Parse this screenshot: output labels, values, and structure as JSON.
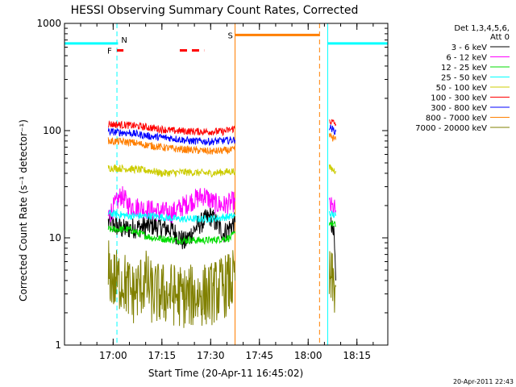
{
  "chart_data": {
    "type": "line",
    "title": "HESSI Observing Summary Count Rates, Corrected",
    "xlabel": "Start Time (20-Apr-11 16:45:02)",
    "ylabel": "Corrected Count Rate (s⁻¹ detector⁻¹)",
    "timestamp": "20-Apr-2011 22:43",
    "y_scale": "log",
    "ylim": [
      1,
      1000
    ],
    "xlim": [
      "16:45:02",
      "18:24:30"
    ],
    "x_ticks": [
      "17:00",
      "17:15",
      "17:30",
      "17:45",
      "18:00",
      "18:15"
    ],
    "y_ticks": [
      "1",
      "10",
      "100",
      "1000"
    ],
    "legend_title": [
      "Det 1,3,4,5,6,",
      "Att 0"
    ],
    "legend_position": "right",
    "series": [
      {
        "name": "3 - 6 keV",
        "color": "#000000",
        "segments": [
          [
            [
              "16:58:30",
              14
            ],
            [
              "17:03:00",
              12
            ],
            [
              "17:12:00",
              13
            ],
            [
              "17:18:00",
              12
            ],
            [
              "17:22:00",
              9
            ],
            [
              "17:26:00",
              13
            ],
            [
              "17:30:00",
              16
            ],
            [
              "17:34:00",
              11
            ],
            [
              "17:37:30",
              14
            ]
          ],
          [
            [
              "18:07:00",
              14
            ],
            [
              "18:08:00",
              10
            ],
            [
              "18:08:30",
              4
            ]
          ]
        ]
      },
      {
        "name": "6 - 12 keV",
        "color": "#ff00ff",
        "segments": [
          [
            [
              "16:58:30",
              16
            ],
            [
              "17:02:30",
              25
            ],
            [
              "17:05:00",
              20
            ],
            [
              "17:12:00",
              18
            ],
            [
              "17:18:00",
              17
            ],
            [
              "17:24:00",
              22
            ],
            [
              "17:28:00",
              25
            ],
            [
              "17:31:00",
              21
            ],
            [
              "17:34:00",
              20
            ],
            [
              "17:37:30",
              22
            ]
          ],
          [
            [
              "18:06:30",
              20
            ],
            [
              "18:08:30",
              18
            ]
          ]
        ]
      },
      {
        "name": "12 - 25 keV",
        "color": "#00dd00",
        "segments": [
          [
            [
              "16:58:30",
              12
            ],
            [
              "17:05:00",
              12
            ],
            [
              "17:08:00",
              11
            ],
            [
              "17:12:00",
              10
            ],
            [
              "17:20:00",
              9.5
            ],
            [
              "17:30:00",
              9.5
            ],
            [
              "17:36:00",
              10
            ],
            [
              "17:37:30",
              11
            ]
          ],
          [
            [
              "18:06:30",
              14
            ],
            [
              "18:08:30",
              13
            ]
          ]
        ]
      },
      {
        "name": "25 - 50 keV",
        "color": "#00ffff",
        "segments": [
          [
            [
              "16:58:30",
              17
            ],
            [
              "17:05:00",
              16
            ],
            [
              "17:12:00",
              16
            ],
            [
              "17:20:00",
              15
            ],
            [
              "17:30:00",
              15
            ],
            [
              "17:37:30",
              16
            ]
          ],
          [
            [
              "18:06:30",
              17
            ],
            [
              "18:08:30",
              16
            ]
          ]
        ]
      },
      {
        "name": "50 - 100 keV",
        "color": "#cccc00",
        "segments": [
          [
            [
              "16:58:30",
              45
            ],
            [
              "17:05:00",
              44
            ],
            [
              "17:12:00",
              42
            ],
            [
              "17:15:00",
              40
            ],
            [
              "17:22:00",
              41
            ],
            [
              "17:30:00",
              40
            ],
            [
              "17:37:30",
              42
            ]
          ],
          [
            [
              "18:06:30",
              45
            ],
            [
              "18:08:30",
              42
            ]
          ]
        ]
      },
      {
        "name": "100 - 300 keV",
        "color": "#ff0000",
        "segments": [
          [
            [
              "16:58:30",
              115
            ],
            [
              "17:05:00",
              112
            ],
            [
              "17:10:00",
              108
            ],
            [
              "17:18:00",
              100
            ],
            [
              "17:26:00",
              98
            ],
            [
              "17:34:00",
              98
            ],
            [
              "17:37:30",
              105
            ]
          ],
          [
            [
              "18:06:30",
              125
            ],
            [
              "18:08:30",
              115
            ]
          ]
        ]
      },
      {
        "name": "300 - 800 keV",
        "color": "#0000ff",
        "segments": [
          [
            [
              "16:58:30",
              98
            ],
            [
              "17:05:00",
              95
            ],
            [
              "17:12:00",
              88
            ],
            [
              "17:18:00",
              85
            ],
            [
              "17:24:00",
              80
            ],
            [
              "17:30:00",
              79
            ],
            [
              "17:37:30",
              82
            ]
          ],
          [
            [
              "18:06:30",
              108
            ],
            [
              "18:08:30",
              98
            ]
          ]
        ]
      },
      {
        "name": "800 - 7000 keV",
        "color": "#ff7f00",
        "segments": [
          [
            [
              "16:58:30",
              80
            ],
            [
              "17:05:00",
              78
            ],
            [
              "17:12:00",
              72
            ],
            [
              "17:18:00",
              68
            ],
            [
              "17:24:00",
              66
            ],
            [
              "17:30:00",
              64
            ],
            [
              "17:37:30",
              66
            ]
          ],
          [
            [
              "18:06:30",
              90
            ],
            [
              "18:08:30",
              82
            ]
          ]
        ]
      },
      {
        "name": "7000 - 20000 keV",
        "color": "#808000",
        "segments": [
          [
            [
              "16:58:30",
              5
            ],
            [
              "17:00:00",
              4
            ],
            [
              "17:03:00",
              4
            ],
            [
              "17:06:00",
              3
            ],
            [
              "17:10:00",
              4
            ],
            [
              "17:12:00",
              3
            ],
            [
              "17:18:00",
              3
            ],
            [
              "17:22:00",
              2.8
            ],
            [
              "17:30:00",
              3
            ],
            [
              "17:37:30",
              4
            ]
          ],
          [
            [
              "18:06:30",
              4
            ],
            [
              "18:08:30",
              3.5
            ]
          ]
        ]
      }
    ],
    "flags": {
      "night_level": 650,
      "night_intervals": [
        [
          "16:45:02",
          "17:01:30"
        ],
        [
          "18:06:00",
          "18:24:30"
        ]
      ],
      "night_color": "#00ffff",
      "saa_label": "S",
      "saa_interval": [
        "17:37:30",
        "18:03:30"
      ],
      "saa_level": 780,
      "saa_color": "#ff7f00",
      "flare_label": "F",
      "flare_intervals": [
        [
          "17:01:10",
          "17:03:10"
        ],
        [
          "17:20:30",
          "17:28:00"
        ]
      ],
      "flare_level": 560,
      "flare_color": "#ff0000",
      "night_label": "N",
      "vertical_markers": [
        {
          "time": "16:45:02",
          "color": "#00ffff",
          "style": "solid"
        },
        {
          "time": "17:01:10",
          "color": "#00ffff",
          "style": "dashed"
        },
        {
          "time": "17:37:30",
          "color": "#ff7f00",
          "style": "solid"
        },
        {
          "time": "18:03:30",
          "color": "#ff7f00",
          "style": "dashed"
        },
        {
          "time": "18:06:00",
          "color": "#00ffff",
          "style": "solid"
        },
        {
          "time": "18:24:30",
          "color": "#00ffff",
          "style": "dashed"
        }
      ]
    }
  }
}
